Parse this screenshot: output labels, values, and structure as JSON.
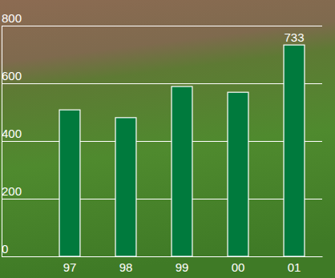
{
  "chart_data": {
    "type": "bar",
    "categories": [
      "97",
      "98",
      "99",
      "00",
      "01"
    ],
    "values": [
      508,
      481,
      589,
      569,
      733
    ],
    "value_labels": [
      null,
      null,
      null,
      null,
      "733"
    ],
    "data_labels": true,
    "color": "#007a3d",
    "ylim": [
      0,
      800
    ],
    "yticks": [
      0,
      200,
      400,
      600,
      800
    ],
    "grid": true
  }
}
